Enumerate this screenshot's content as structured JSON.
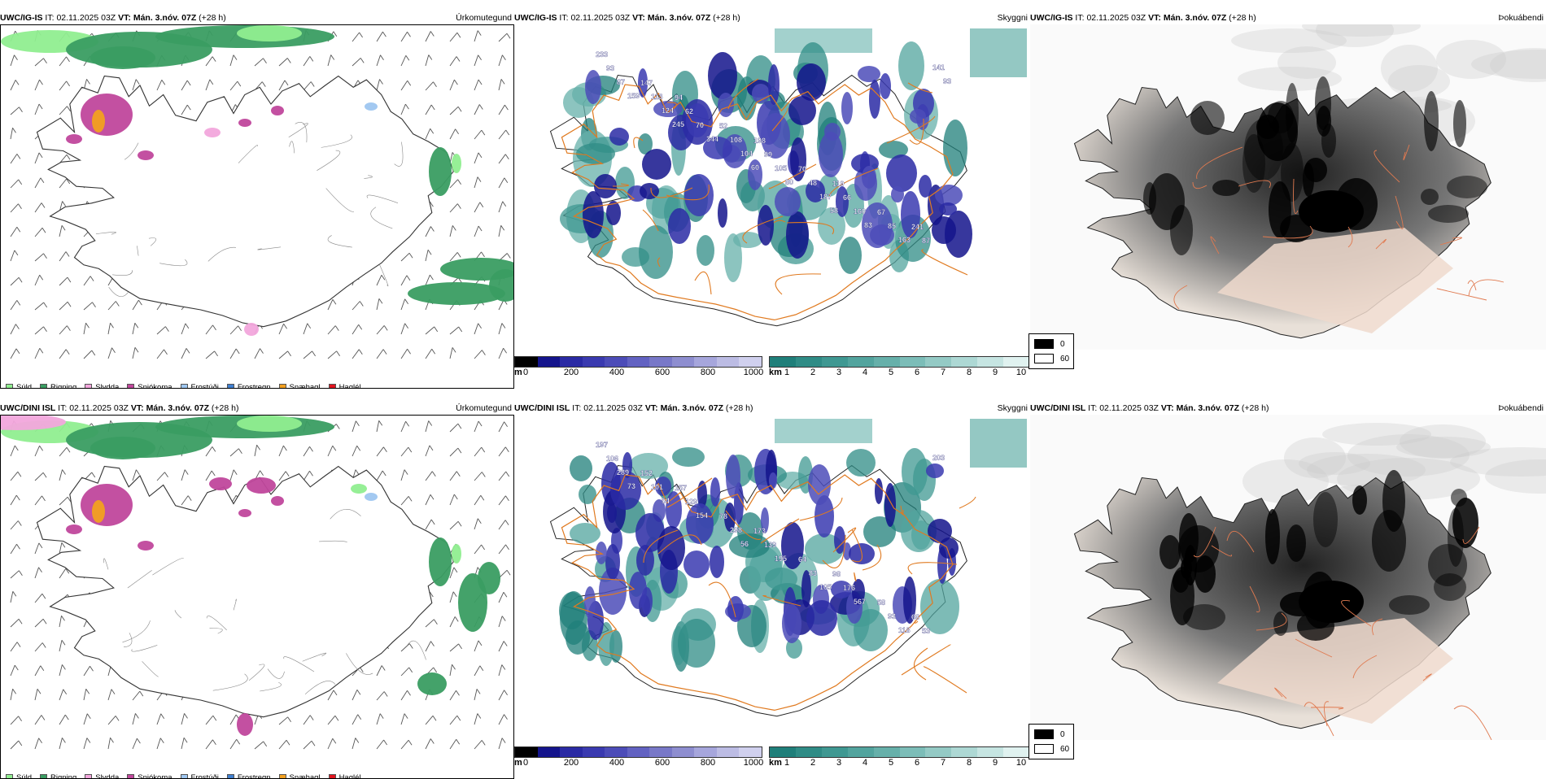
{
  "rows": [
    {
      "model": "UWC/IG-IS",
      "it_label": "IT:",
      "it_value": "02.11.2025 03Z",
      "vt_label": "VT:",
      "vt_value": "Mán. 3.nóv. 07Z",
      "lead": "(+28 h)"
    },
    {
      "model": "UWC/DINI ISL",
      "it_label": "IT:",
      "it_value": "02.11.2025 03Z",
      "vt_label": "VT:",
      "vt_value": "Mán. 3.nóv. 07Z",
      "lead": "(+28 h)"
    }
  ],
  "panel_titles": {
    "precip": "Úrkomutegund",
    "visibility": "Skyggni",
    "fog": "Þokuábendi"
  },
  "precip_legend": [
    {
      "label": "Súld",
      "color": "#90ee90"
    },
    {
      "label": "Rigning",
      "color": "#3a9d62"
    },
    {
      "label": "Slydda",
      "color": "#f2a6dc"
    },
    {
      "label": "Snjókoma",
      "color": "#c0479c"
    },
    {
      "label": "Frostúði",
      "color": "#9ec6f0"
    },
    {
      "label": "Frostregn",
      "color": "#3f7fd0"
    },
    {
      "label": "Snæhagl",
      "color": "#f2a020"
    },
    {
      "label": "Haglél",
      "color": "#e0141e"
    }
  ],
  "cloud_base": {
    "unit": "m",
    "ticks": [
      "0",
      "200",
      "400",
      "600",
      "800",
      "1000"
    ],
    "colors": [
      "#000000",
      "#14148c",
      "#2a2aa4",
      "#3a3ab0",
      "#4c4cb8",
      "#6262c2",
      "#7878c8",
      "#8e8ed0",
      "#a6a6dc",
      "#bcbce4",
      "#d0d0ee"
    ]
  },
  "visibility_scale": {
    "unit": "km",
    "ticks": [
      "1",
      "2",
      "3",
      "4",
      "5",
      "6",
      "7",
      "8",
      "9",
      "10"
    ],
    "colors": [
      "#1f7f7a",
      "#2f8c86",
      "#3f9892",
      "#52a49e",
      "#66b0aa",
      "#7cbdb8",
      "#94cac5",
      "#add8d4",
      "#c6e5e2",
      "#e0f2f0"
    ]
  },
  "fog_legend": [
    {
      "label": "0",
      "color": "#000000"
    },
    {
      "label": "60",
      "color": "#ffffff"
    }
  ],
  "cloud_base_labels_top": [
    "233",
    "94",
    "198",
    "119",
    "241",
    "147",
    "52",
    "70",
    "67",
    "93",
    "62",
    "99",
    "66",
    "87",
    "113",
    "108",
    "48",
    "85",
    "87",
    "70",
    "105",
    "160",
    "141",
    "124",
    "104",
    "187",
    "163",
    "159",
    "344",
    "80",
    "83",
    "93",
    "245",
    "60",
    "58"
  ],
  "cloud_base_labels_bottom": [
    "197",
    "157",
    "173",
    "98",
    "68",
    "152",
    "78",
    "64",
    "58",
    "106",
    "129",
    "139",
    "176",
    "53",
    "101",
    "298",
    "83",
    "93",
    "289",
    "154",
    "195",
    "567",
    "203",
    "54",
    "56",
    "105",
    "118",
    "73"
  ]
}
